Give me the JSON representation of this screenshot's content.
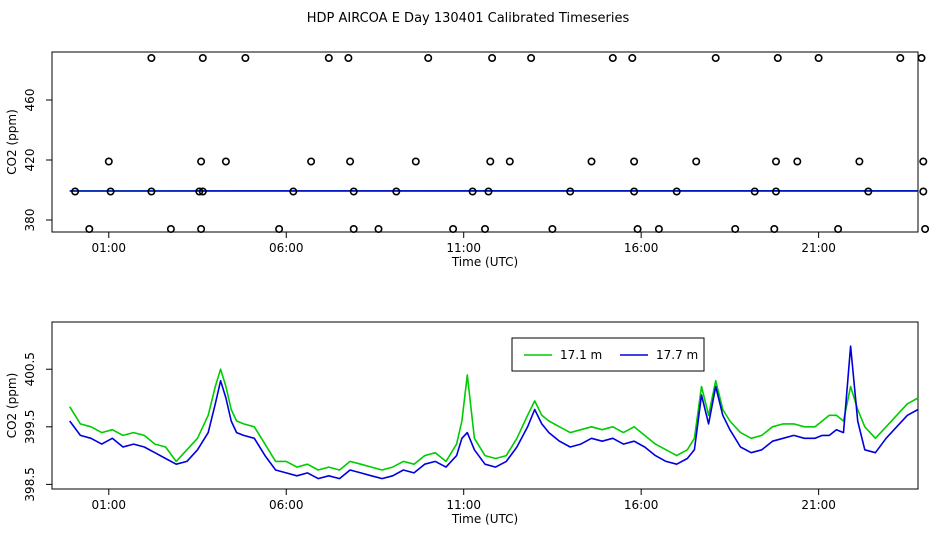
{
  "title": "HDP AIRCOA E  Day 130401  Calibrated Timeseries",
  "colors": {
    "green": "#00cc00",
    "blue": "#0000dd",
    "axis": "#000000"
  },
  "chart_data": [
    {
      "type": "line",
      "xlabel": "Time (UTC)",
      "ylabel": "CO2 (ppm)",
      "xlim": [
        -0.6,
        23.8
      ],
      "ylim": [
        372,
        492
      ],
      "xtick_hours": [
        1,
        6,
        11,
        16,
        21
      ],
      "xtick_labels": [
        "01:00",
        "06:00",
        "11:00",
        "16:00",
        "21:00"
      ],
      "yticks": [
        380,
        420,
        460
      ],
      "yticks_text": [
        "380",
        "420",
        "460"
      ],
      "series": [
        {
          "color": "green",
          "x": [
            -0.1,
            23.8
          ],
          "y": [
            399.4,
            399.5
          ]
        },
        {
          "color": "blue",
          "x": [
            -0.1,
            23.8
          ],
          "y": [
            399.3,
            399.4
          ]
        }
      ],
      "points": {
        "x": [
          0.45,
          0.05,
          1.0,
          1.05,
          2.2,
          2.75,
          2.2,
          3.55,
          3.6,
          3.65,
          3.6,
          3.65,
          4.3,
          4.85,
          5.8,
          6.2,
          6.7,
          7.2,
          7.75,
          7.8,
          7.9,
          7.9,
          8.6,
          9.1,
          9.65,
          10.0,
          10.7,
          11.25,
          11.6,
          11.7,
          11.75,
          11.8,
          12.3,
          12.9,
          13.5,
          14.0,
          14.6,
          15.2,
          15.75,
          15.8,
          15.8,
          15.9,
          16.5,
          17.0,
          17.55,
          18.1,
          18.65,
          19.2,
          19.75,
          19.8,
          19.8,
          19.85,
          20.4,
          21.0,
          21.55,
          22.15,
          22.4,
          23.3,
          23.9,
          23.95,
          23.95,
          24.0
        ],
        "y": [
          374,
          399,
          419,
          399,
          488,
          374,
          399,
          399,
          374,
          399,
          419,
          488,
          419,
          488,
          374,
          399,
          419,
          488,
          488,
          419,
          399,
          374,
          374,
          399,
          419,
          488,
          374,
          399,
          374,
          399,
          419,
          488,
          419,
          488,
          374,
          399,
          419,
          488,
          488,
          419,
          399,
          374,
          374,
          399,
          419,
          488,
          374,
          399,
          374,
          399,
          419,
          488,
          419,
          488,
          374,
          419,
          399,
          488,
          488,
          419,
          399,
          374
        ]
      }
    },
    {
      "type": "line",
      "xlabel": "Time (UTC)",
      "ylabel": "CO2 (ppm)",
      "xlim": [
        -0.6,
        23.8
      ],
      "ylim": [
        398.42,
        401.32
      ],
      "xtick_hours": [
        1,
        6,
        11,
        16,
        21
      ],
      "xtick_labels": [
        "01:00",
        "06:00",
        "11:00",
        "16:00",
        "21:00"
      ],
      "yticks": [
        398.5,
        399.5,
        400.5
      ],
      "yticks_text": [
        "398.5",
        "399.5",
        "400.5"
      ],
      "legend": {
        "position": "top-right",
        "entries": [
          "17.1 m",
          "17.7 m"
        ]
      },
      "series": [
        {
          "name": "17.1 m",
          "color": "green",
          "x": [
            -0.1,
            0.2,
            0.5,
            0.8,
            1.1,
            1.4,
            1.7,
            2.0,
            2.3,
            2.6,
            2.9,
            3.2,
            3.5,
            3.8,
            4.0,
            4.15,
            4.3,
            4.45,
            4.6,
            4.8,
            5.1,
            5.4,
            5.7,
            6.0,
            6.3,
            6.6,
            6.9,
            7.2,
            7.5,
            7.8,
            8.1,
            8.4,
            8.7,
            9.0,
            9.3,
            9.6,
            9.9,
            10.2,
            10.5,
            10.8,
            10.95,
            11.1,
            11.3,
            11.6,
            11.9,
            12.2,
            12.5,
            12.8,
            13.0,
            13.2,
            13.4,
            13.7,
            14.0,
            14.3,
            14.6,
            14.9,
            15.2,
            15.5,
            15.8,
            16.1,
            16.4,
            16.7,
            17.0,
            17.3,
            17.5,
            17.7,
            17.9,
            18.1,
            18.3,
            18.5,
            18.8,
            19.1,
            19.4,
            19.7,
            20.0,
            20.3,
            20.6,
            20.9,
            21.1,
            21.3,
            21.5,
            21.7,
            21.9,
            22.1,
            22.3,
            22.6,
            22.9,
            23.2,
            23.5,
            23.8
          ],
          "y": [
            399.85,
            399.55,
            399.5,
            399.4,
            399.45,
            399.35,
            399.4,
            399.35,
            399.2,
            399.15,
            398.9,
            399.1,
            399.3,
            399.7,
            400.2,
            400.5,
            400.2,
            399.8,
            399.6,
            399.55,
            399.5,
            399.2,
            398.9,
            398.9,
            398.8,
            398.85,
            398.75,
            398.8,
            398.75,
            398.9,
            398.85,
            398.8,
            398.75,
            398.8,
            398.9,
            398.85,
            399.0,
            399.05,
            398.9,
            399.2,
            399.6,
            400.4,
            399.3,
            399.0,
            398.95,
            399.0,
            399.3,
            399.7,
            399.95,
            399.7,
            399.6,
            399.5,
            399.4,
            399.45,
            399.5,
            399.45,
            399.5,
            399.4,
            399.5,
            399.35,
            399.2,
            399.1,
            399.0,
            399.1,
            399.3,
            400.2,
            399.7,
            400.3,
            399.8,
            399.6,
            399.4,
            399.3,
            399.35,
            399.5,
            399.55,
            399.55,
            399.5,
            399.5,
            399.6,
            399.7,
            399.7,
            399.6,
            400.2,
            399.8,
            399.5,
            399.3,
            399.5,
            399.7,
            399.9,
            400.0
          ]
        },
        {
          "name": "17.7 m",
          "color": "blue",
          "x": [
            -0.1,
            0.2,
            0.5,
            0.8,
            1.1,
            1.4,
            1.7,
            2.0,
            2.3,
            2.6,
            2.9,
            3.2,
            3.5,
            3.8,
            4.0,
            4.15,
            4.3,
            4.45,
            4.6,
            4.8,
            5.1,
            5.4,
            5.7,
            6.0,
            6.3,
            6.6,
            6.9,
            7.2,
            7.5,
            7.8,
            8.1,
            8.4,
            8.7,
            9.0,
            9.3,
            9.6,
            9.9,
            10.2,
            10.5,
            10.8,
            10.95,
            11.1,
            11.3,
            11.6,
            11.9,
            12.2,
            12.5,
            12.8,
            13.0,
            13.2,
            13.4,
            13.7,
            14.0,
            14.3,
            14.6,
            14.9,
            15.2,
            15.5,
            15.8,
            16.1,
            16.4,
            16.7,
            17.0,
            17.3,
            17.5,
            17.7,
            17.9,
            18.1,
            18.3,
            18.5,
            18.8,
            19.1,
            19.4,
            19.7,
            20.0,
            20.3,
            20.6,
            20.9,
            21.1,
            21.3,
            21.5,
            21.7,
            21.9,
            22.1,
            22.3,
            22.6,
            22.9,
            23.2,
            23.5,
            23.8
          ],
          "y": [
            399.6,
            399.35,
            399.3,
            399.2,
            399.3,
            399.15,
            399.2,
            399.15,
            399.05,
            398.95,
            398.85,
            398.9,
            399.1,
            399.4,
            399.9,
            400.3,
            400.0,
            399.6,
            399.4,
            399.35,
            399.3,
            399.0,
            398.75,
            398.7,
            398.65,
            398.7,
            398.6,
            398.65,
            398.6,
            398.75,
            398.7,
            398.65,
            398.6,
            398.65,
            398.75,
            398.7,
            398.85,
            398.9,
            398.8,
            399.0,
            399.3,
            399.4,
            399.1,
            398.85,
            398.8,
            398.9,
            399.15,
            399.5,
            399.8,
            399.55,
            399.4,
            399.25,
            399.15,
            399.2,
            399.3,
            399.25,
            399.3,
            399.2,
            399.25,
            399.15,
            399.0,
            398.9,
            398.85,
            398.95,
            399.1,
            400.05,
            399.55,
            400.2,
            399.7,
            399.45,
            399.15,
            399.05,
            399.1,
            399.25,
            399.3,
            399.35,
            399.3,
            399.3,
            399.35,
            399.35,
            399.45,
            399.4,
            400.9,
            399.6,
            399.1,
            399.05,
            399.3,
            399.5,
            399.7,
            399.8
          ]
        }
      ]
    }
  ]
}
